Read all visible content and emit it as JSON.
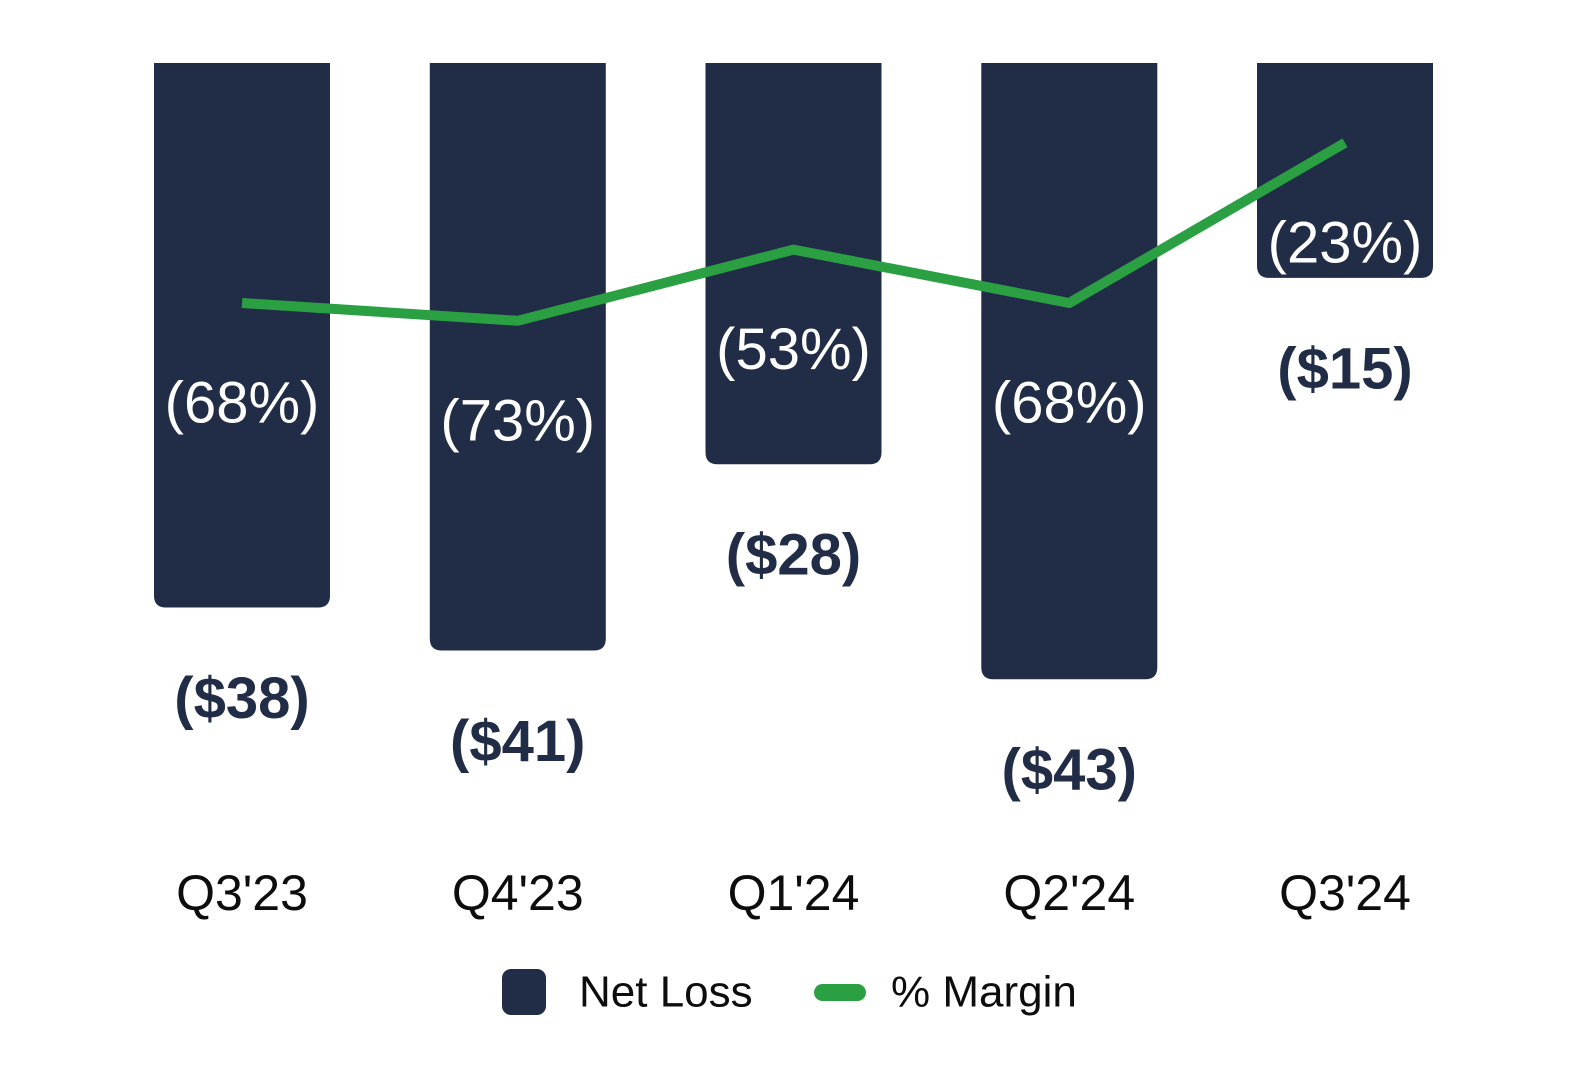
{
  "colors": {
    "background": "#ffffff",
    "bar": "#212c46",
    "line": "#2aa043",
    "bar_label_text": "#ffffff",
    "value_label_text": "#212c46",
    "axis_label_text": "#0d0d0d",
    "legend_label_text": "#0d0d0d"
  },
  "chart_data": {
    "type": "combo",
    "categories": [
      "Q3'23",
      "Q4'23",
      "Q1'24",
      "Q2'24",
      "Q3'24"
    ],
    "series": [
      {
        "name": "Net Loss",
        "chart_type": "bar",
        "values": [
          -38,
          -41,
          -28,
          -43,
          -15
        ],
        "data_labels": [
          "($38)",
          "($41)",
          "($28)",
          "($43)",
          "($15)"
        ],
        "color": "#212c46"
      },
      {
        "name": "% Margin",
        "chart_type": "line",
        "values": [
          -68,
          -73,
          -53,
          -68,
          -23
        ],
        "data_labels": [
          "(68%)",
          "(73%)",
          "(53%)",
          "(68%)",
          "(23%)"
        ],
        "color": "#2aa043"
      }
    ],
    "layout_hints": {
      "bars_direction": "downward-from-top",
      "grid": "off",
      "axes_lines": "off",
      "legend_position": "bottom-center"
    },
    "legend": {
      "items": [
        {
          "label": "Net Loss",
          "swatch": "square",
          "color": "#212c46"
        },
        {
          "label": "% Margin",
          "swatch": "dash",
          "color": "#2aa043"
        }
      ]
    }
  }
}
